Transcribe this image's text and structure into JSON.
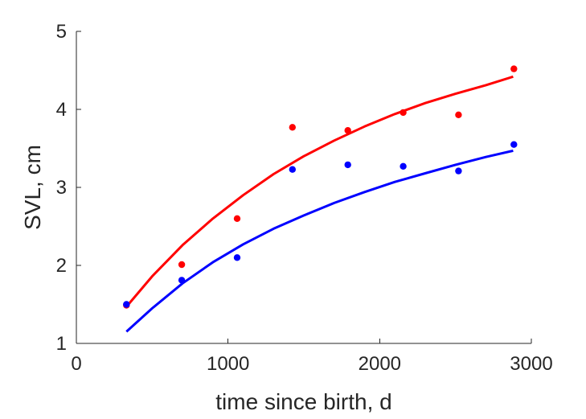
{
  "chart_data": {
    "type": "scatter",
    "xlabel": "time since birth, d",
    "ylabel": "SVL, cm",
    "xlim": [
      0,
      3000
    ],
    "ylim": [
      1,
      5
    ],
    "xticks": [
      0,
      1000,
      2000,
      3000
    ],
    "yticks": [
      1,
      2,
      3,
      4,
      5
    ],
    "xtick_labels": [
      "0",
      "1000",
      "2000",
      "3000"
    ],
    "ytick_labels": [
      "1",
      "2",
      "3",
      "4",
      "5"
    ],
    "grid": false,
    "legend": "none",
    "series": [
      {
        "color": "#ff0000",
        "points": {
          "x": [
            330,
            695,
            1060,
            1425,
            1790,
            2155,
            2520,
            2885
          ],
          "y": [
            1.49,
            2.01,
            2.6,
            3.77,
            3.73,
            3.96,
            3.93,
            4.52
          ]
        },
        "fit": {
          "x": [
            330,
            500,
            700,
            900,
            1100,
            1300,
            1500,
            1700,
            1900,
            2100,
            2300,
            2500,
            2700,
            2880
          ],
          "y": [
            1.47,
            1.86,
            2.26,
            2.6,
            2.9,
            3.17,
            3.4,
            3.6,
            3.78,
            3.94,
            4.08,
            4.2,
            4.31,
            4.42
          ]
        }
      },
      {
        "color": "#0000ff",
        "points": {
          "x": [
            330,
            695,
            1060,
            1425,
            1790,
            2155,
            2520,
            2885
          ],
          "y": [
            1.5,
            1.81,
            2.1,
            3.23,
            3.29,
            3.27,
            3.21,
            3.55
          ]
        },
        "fit": {
          "x": [
            330,
            500,
            700,
            900,
            1100,
            1300,
            1500,
            1700,
            1900,
            2100,
            2300,
            2500,
            2700,
            2880
          ],
          "y": [
            1.15,
            1.45,
            1.77,
            2.04,
            2.27,
            2.47,
            2.64,
            2.8,
            2.94,
            3.07,
            3.18,
            3.29,
            3.39,
            3.47
          ]
        }
      }
    ]
  }
}
